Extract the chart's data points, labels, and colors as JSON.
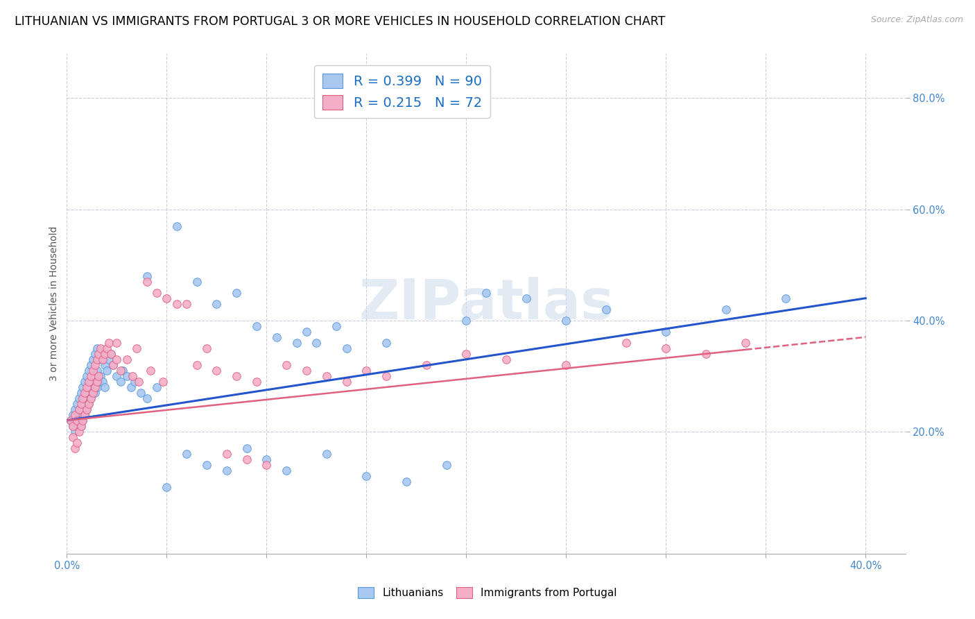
{
  "title": "LITHUANIAN VS IMMIGRANTS FROM PORTUGAL 3 OR MORE VEHICLES IN HOUSEHOLD CORRELATION CHART",
  "source": "Source: ZipAtlas.com",
  "ylabel": "3 or more Vehicles in Household",
  "xlim": [
    0.0,
    0.42
  ],
  "ylim": [
    -0.02,
    0.88
  ],
  "yticks": [
    0.2,
    0.4,
    0.6,
    0.8
  ],
  "ytick_labels": [
    "20.0%",
    "40.0%",
    "60.0%",
    "80.0%"
  ],
  "xticks": [
    0.0,
    0.05,
    0.1,
    0.15,
    0.2,
    0.25,
    0.3,
    0.35,
    0.4
  ],
  "xtick_labels_show": [
    "0.0%",
    "",
    "",
    "",
    "",
    "",
    "",
    "",
    "40.0%"
  ],
  "legend_line1": "R = 0.399   N = 90",
  "legend_line2": "R = 0.215   N = 72",
  "color_blue": "#a8c8f0",
  "color_pink": "#f5aec8",
  "edge_blue": "#5599dd",
  "edge_pink": "#e06080",
  "line_blue_color": "#2255cc",
  "line_pink_color": "#e06080",
  "watermark": "ZIPatlas",
  "title_fontsize": 12.5,
  "tick_fontsize": 10.5,
  "blue_x": [
    0.002,
    0.003,
    0.003,
    0.004,
    0.004,
    0.005,
    0.005,
    0.005,
    0.006,
    0.006,
    0.006,
    0.007,
    0.007,
    0.007,
    0.008,
    0.008,
    0.008,
    0.009,
    0.009,
    0.009,
    0.01,
    0.01,
    0.01,
    0.011,
    0.011,
    0.011,
    0.012,
    0.012,
    0.012,
    0.013,
    0.013,
    0.014,
    0.014,
    0.014,
    0.015,
    0.015,
    0.015,
    0.016,
    0.016,
    0.017,
    0.017,
    0.018,
    0.018,
    0.019,
    0.019,
    0.02,
    0.021,
    0.022,
    0.023,
    0.025,
    0.027,
    0.028,
    0.03,
    0.032,
    0.034,
    0.037,
    0.04,
    0.045,
    0.05,
    0.06,
    0.07,
    0.08,
    0.09,
    0.1,
    0.11,
    0.13,
    0.15,
    0.17,
    0.19,
    0.21,
    0.23,
    0.25,
    0.27,
    0.3,
    0.33,
    0.36,
    0.04,
    0.055,
    0.12,
    0.2,
    0.16,
    0.14,
    0.065,
    0.075,
    0.085,
    0.095,
    0.105,
    0.115,
    0.125,
    0.135
  ],
  "blue_y": [
    0.22,
    0.23,
    0.21,
    0.24,
    0.2,
    0.25,
    0.22,
    0.21,
    0.26,
    0.23,
    0.22,
    0.27,
    0.24,
    0.21,
    0.28,
    0.25,
    0.22,
    0.29,
    0.26,
    0.23,
    0.3,
    0.27,
    0.24,
    0.31,
    0.28,
    0.25,
    0.32,
    0.29,
    0.26,
    0.33,
    0.27,
    0.34,
    0.3,
    0.27,
    0.35,
    0.31,
    0.28,
    0.33,
    0.29,
    0.34,
    0.3,
    0.33,
    0.29,
    0.32,
    0.28,
    0.31,
    0.33,
    0.34,
    0.32,
    0.3,
    0.29,
    0.31,
    0.3,
    0.28,
    0.29,
    0.27,
    0.26,
    0.28,
    0.1,
    0.16,
    0.14,
    0.13,
    0.17,
    0.15,
    0.13,
    0.16,
    0.12,
    0.11,
    0.14,
    0.45,
    0.44,
    0.4,
    0.42,
    0.38,
    0.42,
    0.44,
    0.48,
    0.57,
    0.38,
    0.4,
    0.36,
    0.35,
    0.47,
    0.43,
    0.45,
    0.39,
    0.37,
    0.36,
    0.36,
    0.39
  ],
  "pink_x": [
    0.002,
    0.003,
    0.003,
    0.004,
    0.004,
    0.005,
    0.005,
    0.006,
    0.006,
    0.007,
    0.007,
    0.008,
    0.008,
    0.009,
    0.009,
    0.01,
    0.01,
    0.011,
    0.011,
    0.012,
    0.012,
    0.013,
    0.013,
    0.014,
    0.014,
    0.015,
    0.015,
    0.016,
    0.016,
    0.017,
    0.018,
    0.019,
    0.02,
    0.021,
    0.022,
    0.023,
    0.025,
    0.027,
    0.03,
    0.033,
    0.036,
    0.04,
    0.045,
    0.05,
    0.055,
    0.06,
    0.07,
    0.08,
    0.09,
    0.1,
    0.11,
    0.12,
    0.13,
    0.14,
    0.15,
    0.16,
    0.18,
    0.2,
    0.22,
    0.25,
    0.28,
    0.3,
    0.32,
    0.34,
    0.025,
    0.035,
    0.042,
    0.048,
    0.065,
    0.075,
    0.085,
    0.095
  ],
  "pink_y": [
    0.22,
    0.21,
    0.19,
    0.23,
    0.17,
    0.22,
    0.18,
    0.24,
    0.2,
    0.25,
    0.21,
    0.26,
    0.22,
    0.27,
    0.23,
    0.28,
    0.24,
    0.29,
    0.25,
    0.3,
    0.26,
    0.31,
    0.27,
    0.32,
    0.28,
    0.33,
    0.29,
    0.34,
    0.3,
    0.35,
    0.33,
    0.34,
    0.35,
    0.36,
    0.34,
    0.32,
    0.33,
    0.31,
    0.33,
    0.3,
    0.29,
    0.47,
    0.45,
    0.44,
    0.43,
    0.43,
    0.35,
    0.16,
    0.15,
    0.14,
    0.32,
    0.31,
    0.3,
    0.29,
    0.31,
    0.3,
    0.32,
    0.34,
    0.33,
    0.32,
    0.36,
    0.35,
    0.34,
    0.36,
    0.36,
    0.35,
    0.31,
    0.29,
    0.32,
    0.31,
    0.3,
    0.29
  ]
}
